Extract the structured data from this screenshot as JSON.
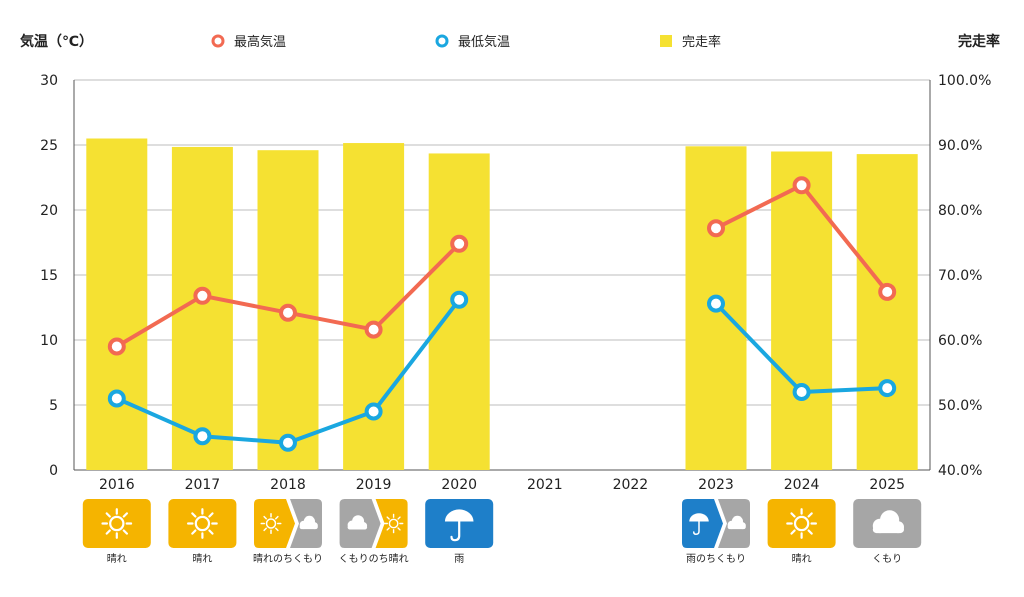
{
  "chart_data": {
    "type": "bar+line",
    "categories": [
      "2016",
      "2017",
      "2018",
      "2019",
      "2020",
      "2021",
      "2022",
      "2023",
      "2024",
      "2025"
    ],
    "y_left": {
      "label": "気温（℃）",
      "range": [
        0,
        30
      ],
      "ticks": [
        0,
        5,
        10,
        15,
        20,
        25,
        30
      ]
    },
    "y_right": {
      "label": "完走率",
      "range": [
        40,
        100
      ],
      "ticks": [
        "40.0%",
        "50.0%",
        "60.0%",
        "70.0%",
        "80.0%",
        "90.0%",
        "100.0%"
      ]
    },
    "legend": [
      {
        "name": "最高気温",
        "color": "#f26a52",
        "marker": "circle"
      },
      {
        "name": "最低気温",
        "color": "#1aa7e0",
        "marker": "circle"
      },
      {
        "name": "完走率",
        "color": "#f5e132",
        "marker": "square"
      }
    ],
    "legend_placement": "top",
    "grid": true,
    "series": [
      {
        "name": "完走率",
        "type": "bar",
        "axis": "right",
        "color": "#f5e132",
        "values": [
          91.0,
          89.7,
          89.2,
          90.3,
          88.7,
          null,
          null,
          89.8,
          89.0,
          88.6
        ]
      },
      {
        "name": "最高気温",
        "type": "line",
        "axis": "left",
        "color": "#f26a52",
        "values": [
          9.5,
          13.4,
          12.1,
          10.8,
          17.4,
          null,
          null,
          18.6,
          21.9,
          13.7
        ]
      },
      {
        "name": "最低気温",
        "type": "line",
        "axis": "left",
        "color": "#1aa7e0",
        "values": [
          5.5,
          2.6,
          2.1,
          4.5,
          13.1,
          null,
          null,
          12.8,
          6.0,
          6.3
        ]
      }
    ]
  },
  "weather": [
    {
      "year": "2016",
      "label": "晴れ",
      "icons": [
        "sun"
      ]
    },
    {
      "year": "2017",
      "label": "晴れ",
      "icons": [
        "sun"
      ]
    },
    {
      "year": "2018",
      "label": "晴れのちくもり",
      "icons": [
        "sun",
        "cloud"
      ]
    },
    {
      "year": "2019",
      "label": "くもりのち晴れ",
      "icons": [
        "cloud",
        "sun"
      ]
    },
    {
      "year": "2020",
      "label": "雨",
      "icons": [
        "umbrella"
      ]
    },
    {
      "year": "2021",
      "label": "",
      "icons": []
    },
    {
      "year": "2022",
      "label": "",
      "icons": []
    },
    {
      "year": "2023",
      "label": "雨のちくもり",
      "icons": [
        "umbrella",
        "cloud"
      ]
    },
    {
      "year": "2024",
      "label": "晴れ",
      "icons": [
        "sun"
      ]
    },
    {
      "year": "2025",
      "label": "くもり",
      "icons": [
        "cloud"
      ]
    }
  ],
  "icon_colors": {
    "sun": "#f5b400",
    "cloud": "#a6a6a6",
    "umbrella": "#1e7fc9"
  }
}
